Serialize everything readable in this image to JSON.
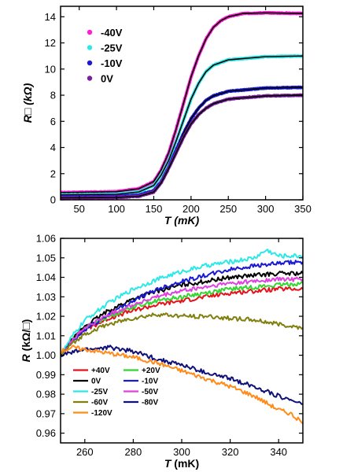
{
  "chart_data": [
    {
      "type": "line",
      "xlabel": {
        "var": "T",
        "unit": "(mK)"
      },
      "ylabel": {
        "var": "R□",
        "unit": "(kΩ)"
      },
      "xlim": [
        25,
        350
      ],
      "ylim": [
        0,
        14.8
      ],
      "xticks": [
        50,
        100,
        150,
        200,
        250,
        300,
        350
      ],
      "yticks": [
        0,
        2,
        4,
        6,
        8,
        10,
        12,
        14
      ],
      "legend_position": "top-left",
      "fit_line_color": "#000000",
      "series": [
        {
          "name": "-40V",
          "color": "#ff1ed2",
          "values": [
            [
              25,
              0.55
            ],
            [
              100,
              0.62
            ],
            [
              130,
              0.85
            ],
            [
              150,
              1.4
            ],
            [
              160,
              2.3
            ],
            [
              170,
              3.6
            ],
            [
              180,
              5.4
            ],
            [
              190,
              7.4
            ],
            [
              200,
              9.4
            ],
            [
              210,
              11.0
            ],
            [
              220,
              12.3
            ],
            [
              230,
              13.2
            ],
            [
              240,
              13.7
            ],
            [
              250,
              14.0
            ],
            [
              270,
              14.25
            ],
            [
              300,
              14.3
            ],
            [
              350,
              14.25
            ]
          ]
        },
        {
          "name": "-25V",
          "color": "#2ee8e8",
          "values": [
            [
              25,
              0.38
            ],
            [
              100,
              0.42
            ],
            [
              130,
              0.6
            ],
            [
              150,
              1.1
            ],
            [
              160,
              1.9
            ],
            [
              170,
              3.0
            ],
            [
              180,
              4.5
            ],
            [
              190,
              6.1
            ],
            [
              200,
              7.7
            ],
            [
              210,
              8.9
            ],
            [
              220,
              9.8
            ],
            [
              230,
              10.3
            ],
            [
              250,
              10.7
            ],
            [
              300,
              10.95
            ],
            [
              350,
              11.0
            ]
          ]
        },
        {
          "name": "-10V",
          "color": "#1a1ad6",
          "values": [
            [
              25,
              0.22
            ],
            [
              100,
              0.25
            ],
            [
              130,
              0.35
            ],
            [
              150,
              0.7
            ],
            [
              160,
              1.4
            ],
            [
              170,
              2.5
            ],
            [
              180,
              3.8
            ],
            [
              190,
              5.1
            ],
            [
              200,
              6.2
            ],
            [
              210,
              7.0
            ],
            [
              220,
              7.6
            ],
            [
              230,
              7.95
            ],
            [
              250,
              8.3
            ],
            [
              300,
              8.55
            ],
            [
              350,
              8.6
            ]
          ]
        },
        {
          "name": "0V",
          "color": "#7a1f9e",
          "values": [
            [
              25,
              0.15
            ],
            [
              100,
              0.18
            ],
            [
              130,
              0.27
            ],
            [
              150,
              0.6
            ],
            [
              160,
              1.3
            ],
            [
              170,
              2.4
            ],
            [
              180,
              3.6
            ],
            [
              190,
              4.8
            ],
            [
              200,
              5.8
            ],
            [
              210,
              6.5
            ],
            [
              220,
              7.0
            ],
            [
              230,
              7.35
            ],
            [
              250,
              7.7
            ],
            [
              300,
              7.95
            ],
            [
              350,
              8.0
            ]
          ]
        }
      ]
    },
    {
      "type": "line",
      "xlabel": {
        "var": "T",
        "unit": "(mK)"
      },
      "ylabel": {
        "var": "R",
        "unit": "(kΩ/□)"
      },
      "xlim": [
        250,
        350
      ],
      "ylim": [
        0.955,
        1.06
      ],
      "xticks": [
        260,
        280,
        300,
        320,
        340
      ],
      "yticks": [
        0.96,
        0.97,
        0.98,
        0.99,
        1.0,
        1.01,
        1.02,
        1.03,
        1.04,
        1.05,
        1.06
      ],
      "ytick_labels": [
        "0.96",
        "0.97",
        "0.98",
        "0.99",
        "1.00",
        "1.01",
        "1.02",
        "1.03",
        "1.04",
        "1.05",
        "1.06"
      ],
      "legend_position": "bottom-left",
      "series": [
        {
          "name": "+40V",
          "color": "#e8101a",
          "values": [
            [
              250,
              1.0
            ],
            [
              255,
              1.008
            ],
            [
              260,
              1.013
            ],
            [
              270,
              1.019
            ],
            [
              280,
              1.023
            ],
            [
              290,
              1.026
            ],
            [
              300,
              1.028
            ],
            [
              310,
              1.03
            ],
            [
              320,
              1.032
            ],
            [
              330,
              1.033
            ],
            [
              340,
              1.034
            ],
            [
              350,
              1.034
            ]
          ]
        },
        {
          "name": "+20V",
          "color": "#33d633",
          "values": [
            [
              250,
              1.0
            ],
            [
              255,
              1.009
            ],
            [
              260,
              1.014
            ],
            [
              270,
              1.02
            ],
            [
              280,
              1.025
            ],
            [
              290,
              1.028
            ],
            [
              300,
              1.03
            ],
            [
              310,
              1.032
            ],
            [
              320,
              1.034
            ],
            [
              330,
              1.035
            ],
            [
              340,
              1.036
            ],
            [
              350,
              1.037
            ]
          ]
        },
        {
          "name": "0V",
          "color": "#000000",
          "values": [
            [
              250,
              1.0
            ],
            [
              255,
              1.008
            ],
            [
              260,
              1.015
            ],
            [
              270,
              1.023
            ],
            [
              280,
              1.029
            ],
            [
              290,
              1.033
            ],
            [
              300,
              1.036
            ],
            [
              310,
              1.038
            ],
            [
              320,
              1.04
            ],
            [
              330,
              1.041
            ],
            [
              340,
              1.042
            ],
            [
              350,
              1.042
            ]
          ]
        },
        {
          "name": "-10V",
          "color": "#1a1ad6",
          "values": [
            [
              250,
              1.0
            ],
            [
              255,
              1.007
            ],
            [
              260,
              1.013
            ],
            [
              270,
              1.021
            ],
            [
              280,
              1.028
            ],
            [
              290,
              1.034
            ],
            [
              300,
              1.038
            ],
            [
              310,
              1.041
            ],
            [
              320,
              1.044
            ],
            [
              330,
              1.046
            ],
            [
              340,
              1.047
            ],
            [
              350,
              1.048
            ]
          ]
        },
        {
          "name": "-25V",
          "color": "#2ee8e8",
          "values": [
            [
              250,
              1.0
            ],
            [
              255,
              1.01
            ],
            [
              260,
              1.018
            ],
            [
              270,
              1.027
            ],
            [
              280,
              1.034
            ],
            [
              290,
              1.039
            ],
            [
              300,
              1.043
            ],
            [
              310,
              1.046
            ],
            [
              320,
              1.048
            ],
            [
              330,
              1.05
            ],
            [
              335,
              1.054
            ],
            [
              340,
              1.051
            ],
            [
              350,
              1.051
            ]
          ]
        },
        {
          "name": "-50V",
          "color": "#e040e0",
          "values": [
            [
              250,
              1.0
            ],
            [
              255,
              1.008
            ],
            [
              260,
              1.014
            ],
            [
              270,
              1.021
            ],
            [
              280,
              1.026
            ],
            [
              290,
              1.03
            ],
            [
              300,
              1.033
            ],
            [
              310,
              1.035
            ],
            [
              320,
              1.037
            ],
            [
              330,
              1.038
            ],
            [
              340,
              1.039
            ],
            [
              350,
              1.039
            ]
          ]
        },
        {
          "name": "-60V",
          "color": "#808010",
          "values": [
            [
              250,
              1.0
            ],
            [
              255,
              1.006
            ],
            [
              260,
              1.011
            ],
            [
              270,
              1.016
            ],
            [
              280,
              1.019
            ],
            [
              290,
              1.021
            ],
            [
              300,
              1.02
            ],
            [
              310,
              1.02
            ],
            [
              320,
              1.019
            ],
            [
              330,
              1.018
            ],
            [
              340,
              1.016
            ],
            [
              350,
              1.014
            ]
          ]
        },
        {
          "name": "-80V",
          "color": "#10107a",
          "values": [
            [
              250,
              1.0
            ],
            [
              260,
              1.003
            ],
            [
              270,
              1.004
            ],
            [
              280,
              1.002
            ],
            [
              290,
              0.998
            ],
            [
              300,
              0.995
            ],
            [
              310,
              0.991
            ],
            [
              320,
              0.988
            ],
            [
              330,
              0.984
            ],
            [
              340,
              0.979
            ],
            [
              350,
              0.975
            ]
          ]
        },
        {
          "name": "-120V",
          "color": "#ff8c1a",
          "values": [
            [
              250,
              1.002
            ],
            [
              255,
              1.004
            ],
            [
              260,
              1.003
            ],
            [
              270,
              1.001
            ],
            [
              280,
              0.999
            ],
            [
              290,
              0.996
            ],
            [
              300,
              0.992
            ],
            [
              310,
              0.988
            ],
            [
              320,
              0.984
            ],
            [
              330,
              0.979
            ],
            [
              340,
              0.972
            ],
            [
              345,
              0.97
            ],
            [
              350,
              0.965
            ]
          ]
        }
      ]
    }
  ]
}
